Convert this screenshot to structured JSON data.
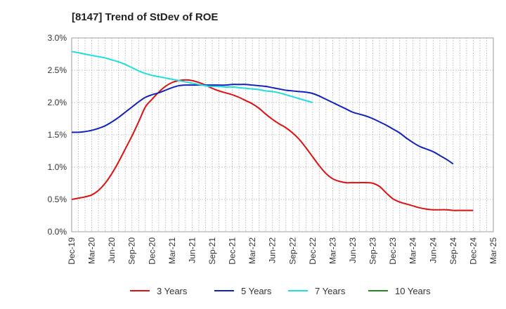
{
  "chart_data": {
    "type": "line",
    "title": "[8147]  Trend of StDev of ROE",
    "xlabel": "",
    "ylabel": "",
    "x_ticks": [
      "Dec-19",
      "Mar-20",
      "Jun-20",
      "Sep-20",
      "Dec-20",
      "Mar-21",
      "Jun-21",
      "Sep-21",
      "Dec-21",
      "Mar-22",
      "Jun-22",
      "Sep-22",
      "Dec-22",
      "Mar-23",
      "Jun-23",
      "Sep-23",
      "Dec-23",
      "Mar-24",
      "Jun-24",
      "Sep-24",
      "Dec-24",
      "Mar-25"
    ],
    "y_ticks": [
      "0.0%",
      "0.5%",
      "1.0%",
      "1.5%",
      "2.0%",
      "2.5%",
      "3.0%"
    ],
    "ylim": [
      0,
      3.0
    ],
    "y_unit": "%",
    "grid": true,
    "legend_position": "bottom",
    "series": [
      {
        "name": "3 Years",
        "color": "#dd1111",
        "points": [
          [
            "Dec-19",
            0.5
          ],
          [
            "Jan-20",
            0.52
          ],
          [
            "Feb-20",
            0.54
          ],
          [
            "Mar-20",
            0.57
          ],
          [
            "Apr-20",
            0.64
          ],
          [
            "May-20",
            0.75
          ],
          [
            "Jun-20",
            0.9
          ],
          [
            "Jul-20",
            1.08
          ],
          [
            "Aug-20",
            1.28
          ],
          [
            "Sep-20",
            1.48
          ],
          [
            "Oct-20",
            1.7
          ],
          [
            "Nov-20",
            1.93
          ],
          [
            "Dec-20",
            2.05
          ],
          [
            "Jan-21",
            2.16
          ],
          [
            "Feb-21",
            2.25
          ],
          [
            "Mar-21",
            2.31
          ],
          [
            "Apr-21",
            2.34
          ],
          [
            "May-21",
            2.35
          ],
          [
            "Jun-21",
            2.34
          ],
          [
            "Jul-21",
            2.31
          ],
          [
            "Aug-21",
            2.27
          ],
          [
            "Sep-21",
            2.22
          ],
          [
            "Oct-21",
            2.18
          ],
          [
            "Nov-21",
            2.15
          ],
          [
            "Dec-21",
            2.12
          ],
          [
            "Jan-22",
            2.08
          ],
          [
            "Feb-22",
            2.03
          ],
          [
            "Mar-22",
            1.98
          ],
          [
            "Apr-22",
            1.91
          ],
          [
            "May-22",
            1.82
          ],
          [
            "Jun-22",
            1.74
          ],
          [
            "Jul-22",
            1.67
          ],
          [
            "Aug-22",
            1.61
          ],
          [
            "Sep-22",
            1.53
          ],
          [
            "Oct-22",
            1.43
          ],
          [
            "Nov-22",
            1.3
          ],
          [
            "Dec-22",
            1.16
          ],
          [
            "Jan-23",
            1.02
          ],
          [
            "Feb-23",
            0.9
          ],
          [
            "Mar-23",
            0.82
          ],
          [
            "Apr-23",
            0.78
          ],
          [
            "May-23",
            0.76
          ],
          [
            "Jun-23",
            0.76
          ],
          [
            "Jul-23",
            0.76
          ],
          [
            "Aug-23",
            0.76
          ],
          [
            "Sep-23",
            0.75
          ],
          [
            "Oct-23",
            0.7
          ],
          [
            "Nov-23",
            0.6
          ],
          [
            "Dec-23",
            0.51
          ],
          [
            "Jan-24",
            0.46
          ],
          [
            "Feb-24",
            0.43
          ],
          [
            "Mar-24",
            0.4
          ],
          [
            "Apr-24",
            0.37
          ],
          [
            "May-24",
            0.35
          ],
          [
            "Jun-24",
            0.34
          ],
          [
            "Jul-24",
            0.34
          ],
          [
            "Aug-24",
            0.34
          ],
          [
            "Sep-24",
            0.33
          ],
          [
            "Oct-24",
            0.33
          ],
          [
            "Nov-24",
            0.33
          ],
          [
            "Dec-24",
            0.33
          ]
        ]
      },
      {
        "name": "5 Years",
        "color": "#1122bb",
        "points": [
          [
            "Dec-19",
            1.54
          ],
          [
            "Jan-20",
            1.54
          ],
          [
            "Feb-20",
            1.55
          ],
          [
            "Mar-20",
            1.57
          ],
          [
            "Apr-20",
            1.6
          ],
          [
            "May-20",
            1.64
          ],
          [
            "Jun-20",
            1.7
          ],
          [
            "Jul-20",
            1.77
          ],
          [
            "Aug-20",
            1.85
          ],
          [
            "Sep-20",
            1.93
          ],
          [
            "Oct-20",
            2.01
          ],
          [
            "Nov-20",
            2.08
          ],
          [
            "Dec-20",
            2.12
          ],
          [
            "Jan-21",
            2.15
          ],
          [
            "Feb-21",
            2.19
          ],
          [
            "Mar-21",
            2.23
          ],
          [
            "Apr-21",
            2.26
          ],
          [
            "May-21",
            2.27
          ],
          [
            "Jun-21",
            2.27
          ],
          [
            "Jul-21",
            2.27
          ],
          [
            "Aug-21",
            2.27
          ],
          [
            "Sep-21",
            2.27
          ],
          [
            "Oct-21",
            2.27
          ],
          [
            "Nov-21",
            2.27
          ],
          [
            "Dec-21",
            2.28
          ],
          [
            "Jan-22",
            2.28
          ],
          [
            "Feb-22",
            2.28
          ],
          [
            "Mar-22",
            2.27
          ],
          [
            "Apr-22",
            2.26
          ],
          [
            "May-22",
            2.25
          ],
          [
            "Jun-22",
            2.23
          ],
          [
            "Jul-22",
            2.21
          ],
          [
            "Aug-22",
            2.19
          ],
          [
            "Sep-22",
            2.18
          ],
          [
            "Oct-22",
            2.17
          ],
          [
            "Nov-22",
            2.16
          ],
          [
            "Dec-22",
            2.14
          ],
          [
            "Jan-23",
            2.1
          ],
          [
            "Feb-23",
            2.05
          ],
          [
            "Mar-23",
            2.0
          ],
          [
            "Apr-23",
            1.95
          ],
          [
            "May-23",
            1.9
          ],
          [
            "Jun-23",
            1.85
          ],
          [
            "Jul-23",
            1.82
          ],
          [
            "Aug-23",
            1.79
          ],
          [
            "Sep-23",
            1.75
          ],
          [
            "Oct-23",
            1.7
          ],
          [
            "Nov-23",
            1.65
          ],
          [
            "Dec-23",
            1.59
          ],
          [
            "Jan-24",
            1.53
          ],
          [
            "Feb-24",
            1.45
          ],
          [
            "Mar-24",
            1.38
          ],
          [
            "Apr-24",
            1.32
          ],
          [
            "May-24",
            1.28
          ],
          [
            "Jun-24",
            1.24
          ],
          [
            "Jul-24",
            1.18
          ],
          [
            "Aug-24",
            1.12
          ],
          [
            "Sep-24",
            1.05
          ]
        ]
      },
      {
        "name": "7 Years",
        "color": "#22dddd",
        "points": [
          [
            "Dec-19",
            2.79
          ],
          [
            "Jan-20",
            2.77
          ],
          [
            "Feb-20",
            2.75
          ],
          [
            "Mar-20",
            2.73
          ],
          [
            "Apr-20",
            2.71
          ],
          [
            "May-20",
            2.69
          ],
          [
            "Jun-20",
            2.66
          ],
          [
            "Jul-20",
            2.63
          ],
          [
            "Aug-20",
            2.59
          ],
          [
            "Sep-20",
            2.54
          ],
          [
            "Oct-20",
            2.49
          ],
          [
            "Nov-20",
            2.45
          ],
          [
            "Dec-20",
            2.42
          ],
          [
            "Jan-21",
            2.4
          ],
          [
            "Feb-21",
            2.38
          ],
          [
            "Mar-21",
            2.36
          ],
          [
            "Apr-21",
            2.34
          ],
          [
            "May-21",
            2.32
          ],
          [
            "Jun-21",
            2.3
          ],
          [
            "Jul-21",
            2.28
          ],
          [
            "Aug-21",
            2.26
          ],
          [
            "Sep-21",
            2.25
          ],
          [
            "Oct-21",
            2.25
          ],
          [
            "Nov-21",
            2.24
          ],
          [
            "Dec-21",
            2.24
          ],
          [
            "Jan-22",
            2.23
          ],
          [
            "Feb-22",
            2.22
          ],
          [
            "Mar-22",
            2.21
          ],
          [
            "Apr-22",
            2.2
          ],
          [
            "May-22",
            2.18
          ],
          [
            "Jun-22",
            2.17
          ],
          [
            "Jul-22",
            2.15
          ],
          [
            "Aug-22",
            2.12
          ],
          [
            "Sep-22",
            2.09
          ],
          [
            "Oct-22",
            2.06
          ],
          [
            "Nov-22",
            2.03
          ],
          [
            "Dec-22",
            2.0
          ]
        ]
      },
      {
        "name": "10 Years",
        "color": "#228822",
        "points": []
      }
    ]
  }
}
